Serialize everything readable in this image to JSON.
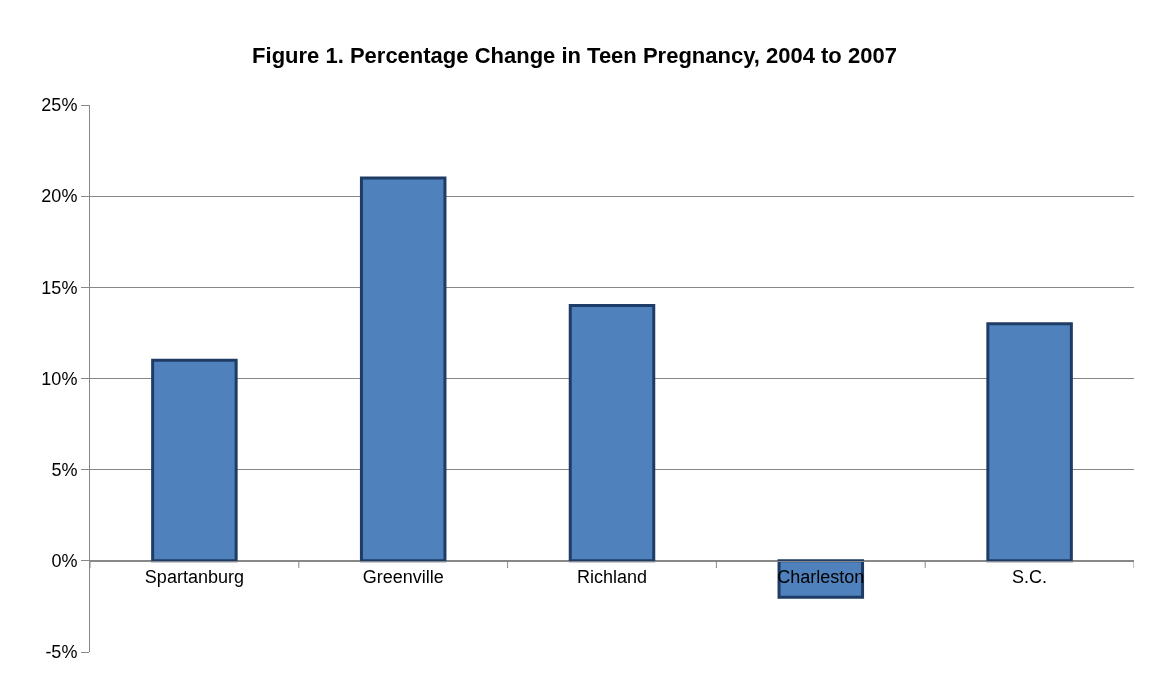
{
  "chart_data": {
    "type": "bar",
    "title": "Figure 1. Percentage Change in Teen Pregnancy, 2004 to 2007",
    "categories": [
      "Spartanburg",
      "Greenville",
      "Richland",
      "Charleston",
      "S.C."
    ],
    "values": [
      11,
      21,
      14,
      -2,
      13
    ],
    "color": "#4f81bd",
    "ylim": [
      -5,
      25
    ],
    "yticks": [
      {
        "value": -5,
        "label": "-5%"
      },
      {
        "value": 0,
        "label": "0%"
      },
      {
        "value": 5,
        "label": "5%"
      },
      {
        "value": 10,
        "label": "10%"
      },
      {
        "value": 15,
        "label": "15%"
      },
      {
        "value": 20,
        "label": "20%"
      },
      {
        "value": 25,
        "label": "25%"
      }
    ],
    "grid": "y"
  }
}
